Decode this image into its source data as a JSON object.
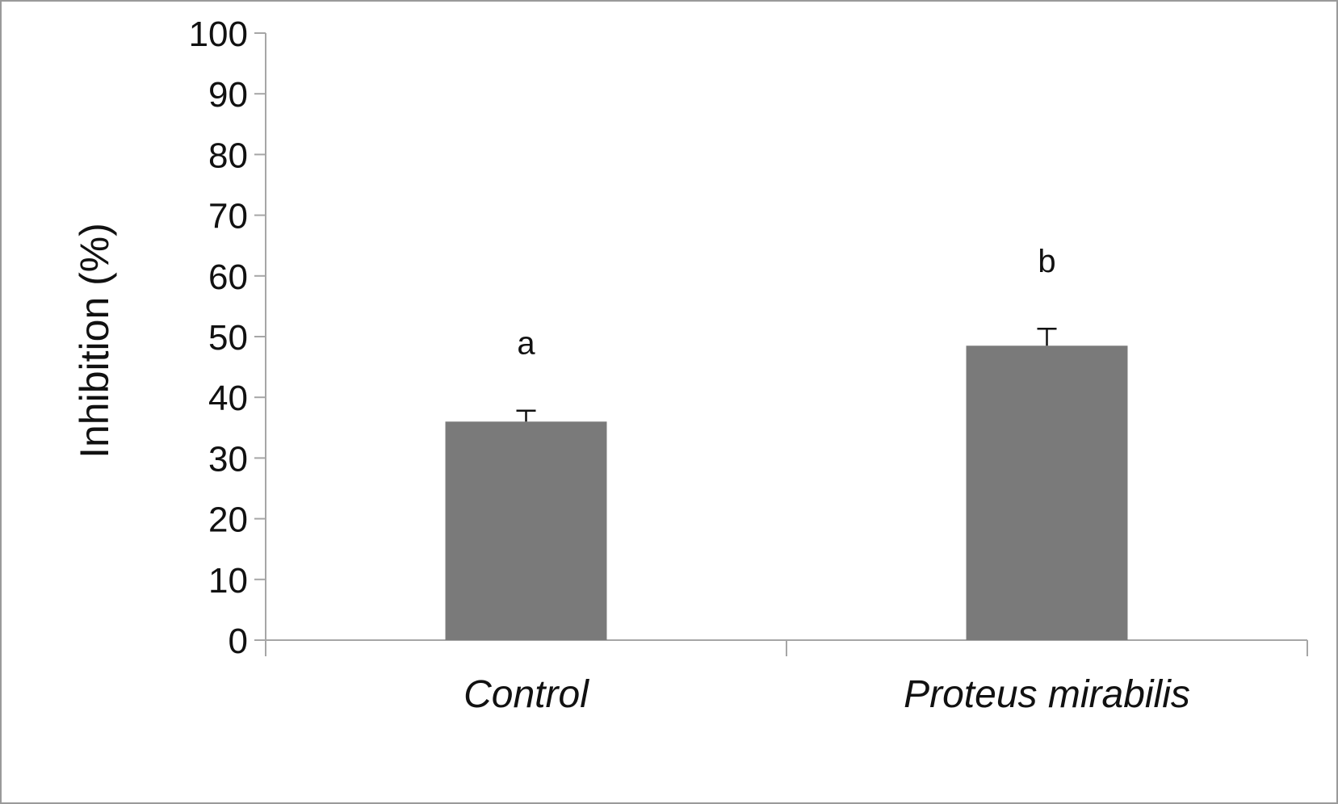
{
  "chart_data": {
    "type": "bar",
    "title": "",
    "xlabel": "",
    "ylabel": "Inhibition (%)",
    "ylim": [
      0,
      100
    ],
    "yticks": [
      "0",
      "10",
      "20",
      "30",
      "40",
      "50",
      "60",
      "70",
      "80",
      "90",
      "100"
    ],
    "categories": [
      "Control",
      "Proteus mirabilis"
    ],
    "values": [
      36,
      48.5
    ],
    "errors": [
      1.8,
      2.8
    ],
    "significance_letters": [
      "a",
      "b"
    ],
    "bar_color": "#7a7a7a",
    "axis_color": "#a6a6a6",
    "grid": false,
    "legend": "none"
  }
}
